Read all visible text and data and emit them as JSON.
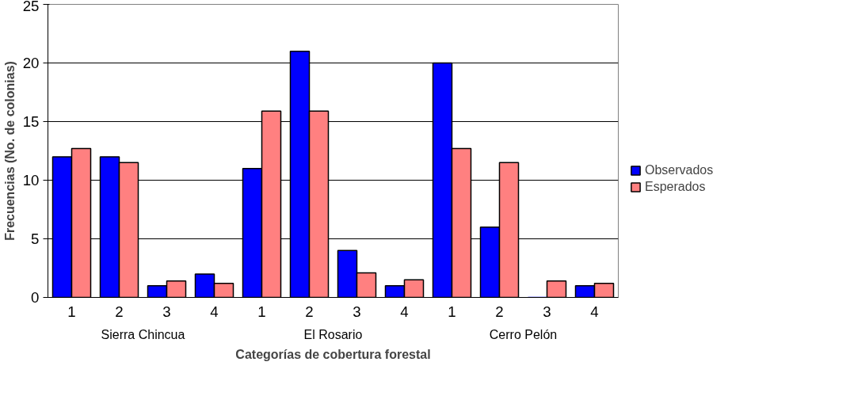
{
  "chart_data": {
    "type": "bar",
    "xlabel": "Categorías de cobertura forestal",
    "ylabel": "Frecuencias (No. de colonias)",
    "categories": [
      "1",
      "2",
      "3",
      "4",
      "1",
      "2",
      "3",
      "4",
      "1",
      "2",
      "3",
      "4"
    ],
    "series": [
      {
        "name": "Observados",
        "color": "#0000ff",
        "values": [
          12,
          12,
          1,
          2,
          11,
          21,
          4,
          1,
          20,
          6,
          0,
          1
        ]
      },
      {
        "name": "Esperados",
        "color": "#ff8080",
        "values": [
          12.7,
          11.5,
          1.4,
          1.2,
          15.9,
          15.9,
          2.1,
          1.5,
          12.7,
          11.5,
          1.4,
          1.2
        ]
      }
    ],
    "annotations": [
      "Sierra Chincua",
      "El Rosario",
      "Cerro Pelón"
    ],
    "ylim": [
      0,
      25
    ],
    "yticks": [
      0,
      5,
      10,
      15,
      20,
      25
    ],
    "grid": "y",
    "legend": "right"
  }
}
